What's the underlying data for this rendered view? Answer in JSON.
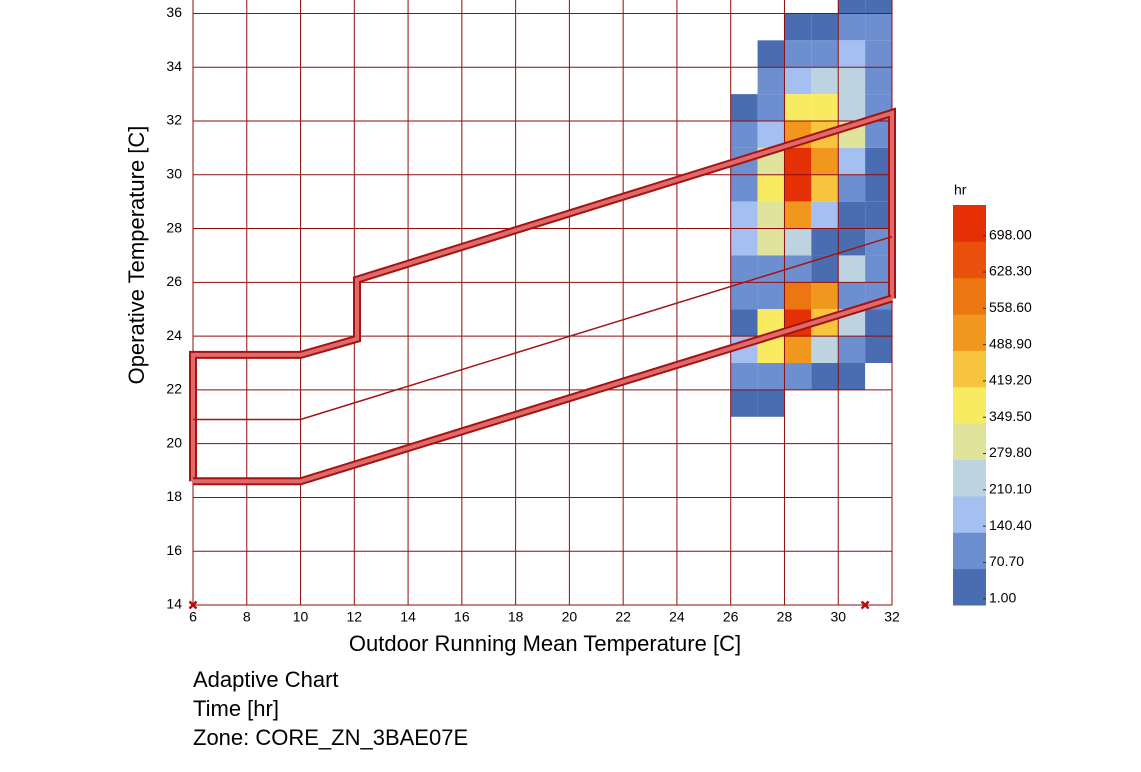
{
  "chart_data": {
    "type": "heatmap",
    "xlabel": "Outdoor Running Mean Temperature [C]",
    "ylabel": "Operative Temperature [C]",
    "notes": [
      "Adaptive Chart",
      "Time [hr]",
      "Zone: CORE_ZN_3BAE07E"
    ],
    "xlim": [
      6,
      32
    ],
    "ylim": [
      14,
      36.5
    ],
    "xticks": [
      6,
      8,
      10,
      12,
      14,
      16,
      18,
      20,
      22,
      24,
      26,
      28,
      30,
      32
    ],
    "yticks": [
      14,
      16,
      18,
      20,
      22,
      24,
      26,
      28,
      30,
      32,
      34,
      36
    ],
    "grid": true,
    "grid_color": "#8e0d0d",
    "cells": {
      "x": [
        26,
        26,
        26,
        26,
        26,
        26,
        26,
        26,
        26,
        26,
        26,
        26,
        27,
        27,
        27,
        27,
        27,
        27,
        27,
        27,
        27,
        27,
        27,
        27,
        27,
        27,
        28,
        28,
        28,
        28,
        28,
        28,
        28,
        28,
        28,
        28,
        28,
        28,
        28,
        28,
        29,
        29,
        29,
        29,
        29,
        29,
        29,
        29,
        29,
        29,
        29,
        29,
        29,
        29,
        30,
        30,
        30,
        30,
        30,
        30,
        30,
        30,
        30,
        30,
        30,
        30,
        30,
        30,
        30,
        31,
        31,
        31,
        31,
        31,
        31,
        31,
        31,
        31,
        31,
        31,
        31,
        31,
        31
      ],
      "y": [
        32,
        31,
        30,
        29,
        28,
        27,
        26,
        25,
        24,
        23,
        22,
        21,
        34,
        33,
        32,
        31,
        30,
        29,
        28,
        27,
        26,
        25,
        24,
        23,
        22,
        21,
        35,
        34,
        33,
        32,
        31,
        30,
        29,
        28,
        27,
        26,
        25,
        24,
        23,
        22,
        35,
        34,
        33,
        32,
        31,
        30,
        29,
        28,
        27,
        26,
        25,
        24,
        23,
        22,
        36,
        35,
        34,
        33,
        32,
        31,
        30,
        29,
        28,
        27,
        26,
        25,
        24,
        23,
        22,
        36,
        35,
        34,
        33,
        32,
        31,
        30,
        29,
        28,
        27,
        26,
        25,
        24,
        23
      ],
      "values": [
        20,
        90,
        90,
        90,
        160,
        160,
        90,
        90,
        20,
        160,
        90,
        20,
        20,
        90,
        90,
        160,
        300,
        370,
        300,
        300,
        90,
        90,
        370,
        370,
        90,
        20,
        20,
        90,
        160,
        370,
        510,
        690,
        690,
        510,
        230,
        90,
        580,
        690,
        510,
        90,
        20,
        90,
        230,
        370,
        440,
        510,
        440,
        160,
        20,
        20,
        510,
        440,
        230,
        20,
        20,
        90,
        160,
        230,
        230,
        300,
        160,
        90,
        20,
        20,
        230,
        90,
        230,
        90,
        20,
        20,
        90,
        90,
        90,
        90,
        90,
        20,
        20,
        20,
        90,
        90,
        90,
        20,
        20
      ]
    },
    "colorbar": {
      "title": "hr",
      "lim": [
        -11,
        757
      ],
      "colors": [
        "#4a6db1",
        "#6d8fd0",
        "#a5bff1",
        "#bdd3df",
        "#dfe39c",
        "#f8ea61",
        "#f7c53d",
        "#f2971e",
        "#ec7611",
        "#e8500b",
        "#e53006"
      ],
      "ticks": [
        {
          "value": 1,
          "label": "1.00"
        },
        {
          "value": 70.7,
          "label": "70.70"
        },
        {
          "value": 140.4,
          "label": "140.40"
        },
        {
          "value": 210.1,
          "label": "210.10"
        },
        {
          "value": 279.8,
          "label": "279.80"
        },
        {
          "value": 349.5,
          "label": "349.50"
        },
        {
          "value": 419.2,
          "label": "419.20"
        },
        {
          "value": 488.9,
          "label": "488.90"
        },
        {
          "value": 558.6,
          "label": "558.60"
        },
        {
          "value": 628.3,
          "label": "628.30"
        },
        {
          "value": 698,
          "label": "698.00"
        }
      ]
    },
    "lines": [
      {
        "x": [
          6,
          6,
          10,
          12.1,
          12.1,
          32,
          32
        ],
        "values": [
          18.6,
          23.3,
          23.3,
          23.9,
          26.1,
          32.3,
          25.4
        ],
        "width": 6
      },
      {
        "x": [
          6,
          10,
          32
        ],
        "values": [
          18.6,
          18.6,
          25.4
        ],
        "width": 6
      },
      {
        "x": [
          6,
          10,
          32
        ],
        "values": [
          20.9,
          20.9,
          27.7
        ],
        "width": 1.5
      }
    ],
    "line_color": "#a51414",
    "line_fill": "#e06a6a",
    "markers": {
      "x": [
        6,
        31
      ],
      "values": [
        14,
        14
      ],
      "color": "#b01010"
    }
  }
}
